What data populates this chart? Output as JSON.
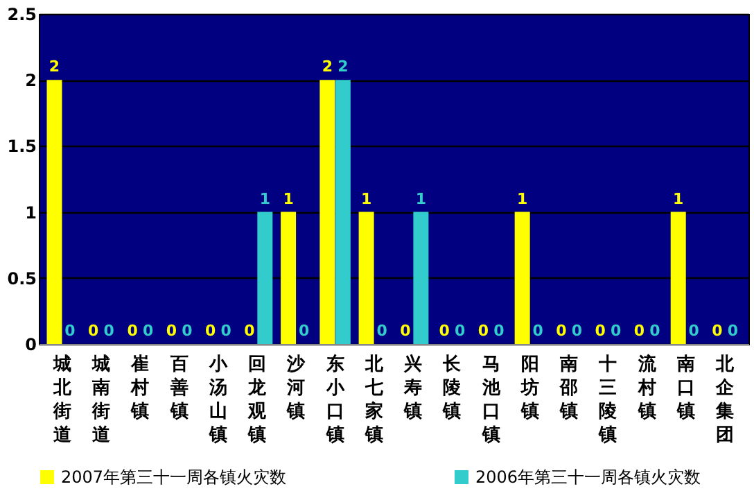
{
  "chart_data": {
    "type": "bar",
    "categories": [
      "城北街道",
      "城南街道",
      "崔村镇",
      "百善镇",
      "小汤山镇",
      "回龙观镇",
      "沙河镇",
      "东小口镇",
      "北七家镇",
      "兴寿镇",
      "长陵镇",
      "马池口镇",
      "阳坊镇",
      "南邵镇",
      "十三陵镇",
      "流村镇",
      "南口镇",
      "北企集团"
    ],
    "series": [
      {
        "name": "2007年第三十一周各镇火灾数",
        "color": "#ffff00",
        "values": [
          2,
          0,
          0,
          0,
          0,
          0,
          1,
          2,
          1,
          0,
          0,
          0,
          1,
          0,
          0,
          0,
          1,
          0
        ]
      },
      {
        "name": "2006年第三十一周各镇火灾数",
        "color": "#33cccc",
        "values": [
          0,
          0,
          0,
          0,
          0,
          1,
          0,
          2,
          0,
          1,
          0,
          0,
          0,
          0,
          0,
          0,
          0,
          0
        ]
      }
    ],
    "ylim": [
      0,
      2.5
    ],
    "yticks": [
      0,
      0.5,
      1,
      1.5,
      2,
      2.5
    ],
    "grid": "y",
    "legend": "bottom",
    "data_labels": true
  }
}
